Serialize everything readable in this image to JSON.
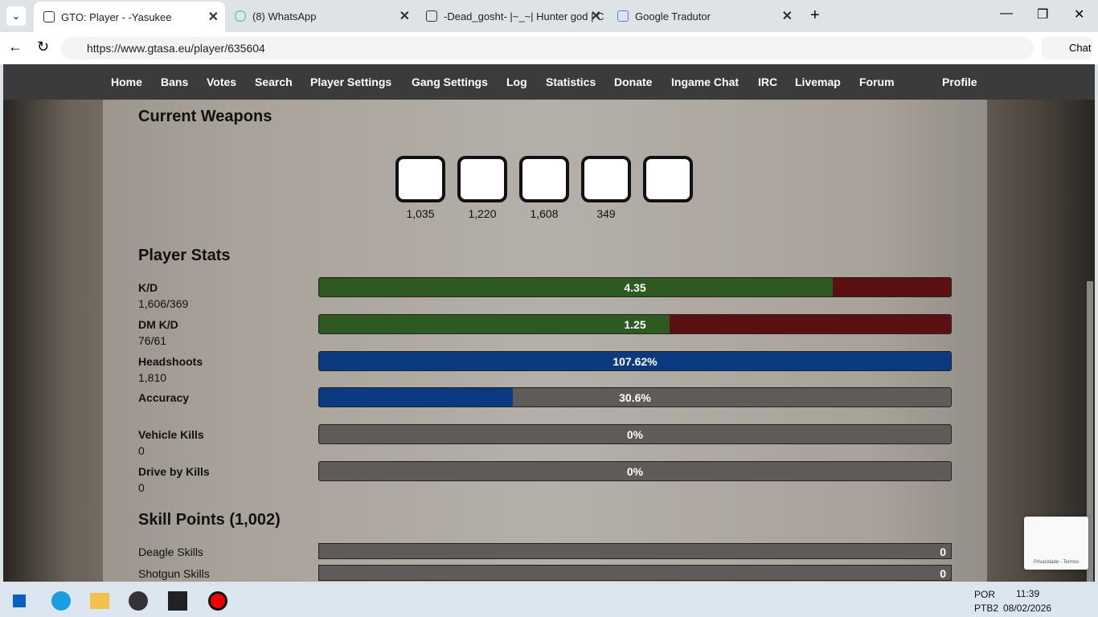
{
  "browser": {
    "tabs": [
      "GTO: Player - -Yasukee",
      "(8) WhatsApp",
      "-Dead_gosht- |~_~| Hunter god | C",
      "Google Tradutor"
    ],
    "url": "https://www.gtasa.eu/player/635604",
    "chat": "Chat"
  },
  "nav": [
    "Home",
    "Bans",
    "Votes",
    "Search",
    "Player Settings",
    "Gang Settings",
    "Log",
    "Statistics",
    "Donate",
    "Ingame Chat",
    "IRC",
    "Livemap",
    "Forum"
  ],
  "profile": "Profile",
  "weapons": {
    "title": "Current Weapons",
    "counts": [
      "1,035",
      "1,220",
      "1,608",
      "349"
    ]
  },
  "stats": {
    "title": "Player Stats",
    "rows": [
      {
        "label": "K/D",
        "bar": "4.35",
        "detail": "1,606/369"
      },
      {
        "label": "DM K/D",
        "bar": "1.25",
        "detail": "76/61"
      },
      {
        "label": "Headshoots",
        "bar": "107.62%",
        "detail": "1,810"
      },
      {
        "label": "Accuracy",
        "bar": "30.6%"
      },
      {
        "label": "Vehicle Kills",
        "bar": "0%",
        "detail": "0"
      },
      {
        "label": "Drive by Kills",
        "bar": "0%",
        "detail": "0"
      }
    ]
  },
  "skills": {
    "title": "Skill Points (1,002)",
    "rows": [
      {
        "label": "Deagle Skills",
        "value": "0"
      },
      {
        "label": "Shotgun Skills",
        "value": "0"
      }
    ]
  },
  "recaptcha": "Privacidade - Termos",
  "taskbar": {
    "lang": "POR",
    "layout": "PTB2",
    "time": "11:39",
    "date": "08/02/2026"
  }
}
